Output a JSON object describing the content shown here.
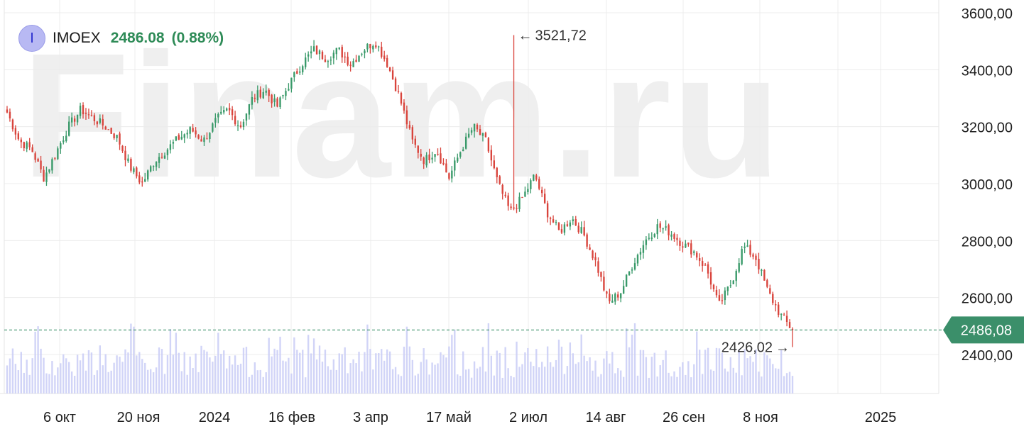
{
  "watermark": "Finam.ru",
  "legend": {
    "badge_letter": "I",
    "ticker": "IMOEX",
    "price": "2486.08",
    "change": "(0.88%)"
  },
  "annotations": {
    "high_label": "3521,72",
    "low_label": "2426,02",
    "last_price_label": "2486,08"
  },
  "colors": {
    "up": "#3a9a6a",
    "down": "#d9443c",
    "volume": "#c9cdf6",
    "price_line": "#3b8f6a",
    "grid": "#ececec"
  },
  "chart_data": {
    "type": "candlestick",
    "title": "",
    "y_axis_ticks": [
      "3600,00",
      "3400,00",
      "3200,00",
      "3000,00",
      "2800,00",
      "2600,00",
      "2400,00"
    ],
    "y_axis_tick_values": [
      3600,
      3400,
      3200,
      3000,
      2800,
      2600,
      2400
    ],
    "x_axis_ticks": [
      "6 окт",
      "20 ноя",
      "2024",
      "16 фев",
      "3 апр",
      "17 май",
      "2 июл",
      "14 авг",
      "26 сен",
      "8 ноя",
      "2025"
    ],
    "ylim": [
      2340,
      3640
    ],
    "series_close_trajectory": [
      3250,
      3150,
      3120,
      3020,
      3110,
      3200,
      3260,
      3230,
      3200,
      3160,
      3060,
      3000,
      3080,
      3120,
      3160,
      3190,
      3150,
      3220,
      3260,
      3200,
      3300,
      3330,
      3270,
      3350,
      3420,
      3470,
      3440,
      3470,
      3420,
      3470,
      3500,
      3420,
      3300,
      3150,
      3080,
      3120,
      3020,
      3120,
      3200,
      3150,
      3000,
      2900,
      2950,
      3030,
      2900,
      2830,
      2880,
      2820,
      2720,
      2580,
      2620,
      2720,
      2800,
      2850,
      2830,
      2790,
      2760,
      2700,
      2570,
      2650,
      2780,
      2740,
      2620,
      2540,
      2486.08
    ],
    "high": 3521.72,
    "low": 2426.02,
    "last": 2486.08,
    "grid": true
  }
}
